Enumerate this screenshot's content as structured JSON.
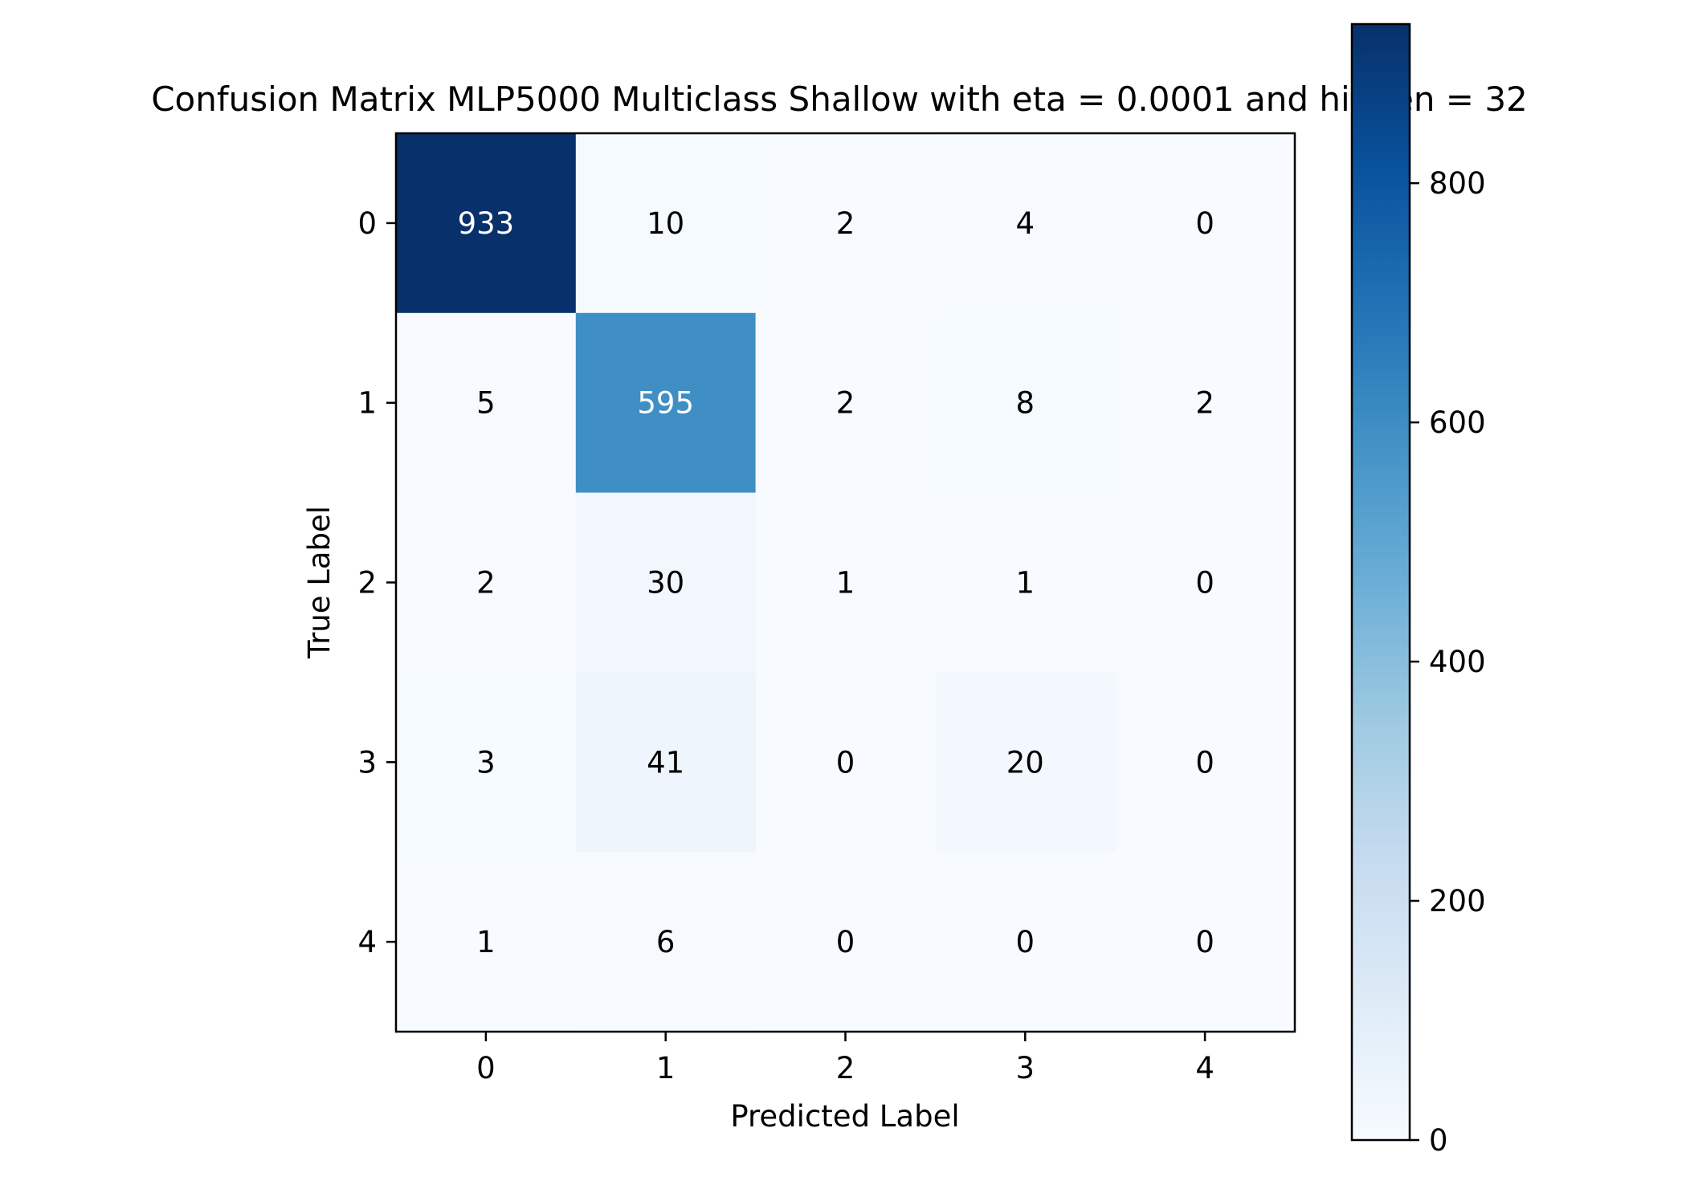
{
  "chart_data": {
    "type": "heatmap",
    "title": "Confusion Matrix MLP5000 Multiclass Shallow with eta = 0.0001 and hidden = 32",
    "xlabel": "Predicted Label",
    "ylabel": "True Label",
    "x_categories": [
      "0",
      "1",
      "2",
      "3",
      "4"
    ],
    "y_categories": [
      "0",
      "1",
      "2",
      "3",
      "4"
    ],
    "matrix": [
      [
        933,
        10,
        2,
        4,
        0
      ],
      [
        5,
        595,
        2,
        8,
        2
      ],
      [
        2,
        30,
        1,
        1,
        0
      ],
      [
        3,
        41,
        0,
        20,
        0
      ],
      [
        1,
        6,
        0,
        0,
        0
      ]
    ],
    "colormap": "Blues",
    "colorbar": {
      "range": [
        0,
        933
      ],
      "ticks": [
        0,
        200,
        400,
        600,
        800
      ],
      "tick_labels": [
        "0",
        "200",
        "400",
        "600",
        "800"
      ]
    },
    "colors": {
      "low": "#f7fbff",
      "high": "#08306b",
      "text_light": "#ffffff",
      "text_dark": "#000000"
    }
  }
}
